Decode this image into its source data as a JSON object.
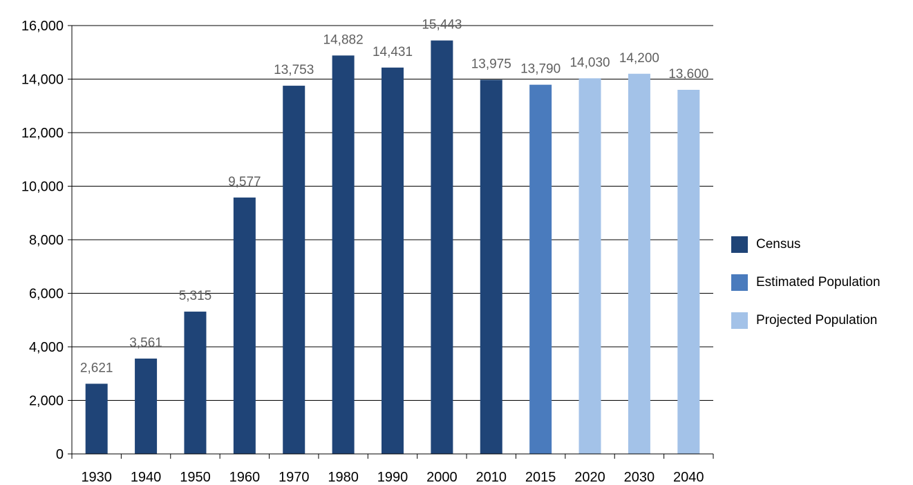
{
  "chart_data": {
    "type": "bar",
    "categories": [
      "1930",
      "1940",
      "1950",
      "1960",
      "1970",
      "1980",
      "1990",
      "2000",
      "2010",
      "2015",
      "2020",
      "2030",
      "2040"
    ],
    "values": [
      2621,
      3561,
      5315,
      9577,
      13753,
      14882,
      14431,
      15443,
      13975,
      13790,
      14030,
      14200,
      13600
    ],
    "value_labels": [
      "2,621",
      "3,561",
      "5,315",
      "9,577",
      "13,753",
      "14,882",
      "14,431",
      "15,443",
      "13,975",
      "13,790",
      "14,030",
      "14,200",
      "13,600"
    ],
    "bar_series": [
      "census",
      "census",
      "census",
      "census",
      "census",
      "census",
      "census",
      "census",
      "census",
      "estimated",
      "projected",
      "projected",
      "projected"
    ],
    "ylim": [
      0,
      16000
    ],
    "y_ticks": [
      0,
      2000,
      4000,
      6000,
      8000,
      10000,
      12000,
      14000,
      16000
    ],
    "y_tick_labels": [
      "0",
      "2,000",
      "4,000",
      "6,000",
      "8,000",
      "10,000",
      "12,000",
      "14,000",
      "16,000"
    ],
    "grid": true,
    "legend_position": "right",
    "series": [
      {
        "key": "census",
        "name": "Census",
        "color": "#1f4477"
      },
      {
        "key": "estimated",
        "name": "Estimated Population",
        "color": "#4a7bbd"
      },
      {
        "key": "projected",
        "name": "Projected Population",
        "color": "#a3c2e8"
      }
    ]
  }
}
